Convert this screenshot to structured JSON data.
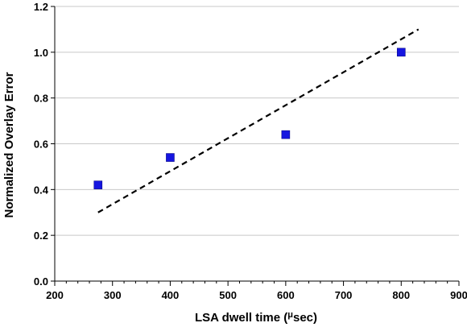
{
  "chart_data": {
    "type": "scatter",
    "title": "",
    "xlabel": "LSA dwell time (",
    "xlabel_mu": "μ",
    "xlabel_suffix": "sec)",
    "ylabel": "Normalized Overlay Error",
    "xlim": [
      200,
      900
    ],
    "ylim": [
      0.0,
      1.2
    ],
    "x_ticks": [
      "200",
      "300",
      "400",
      "500",
      "600",
      "700",
      "800",
      "900"
    ],
    "y_ticks": [
      "0.0",
      "0.2",
      "0.4",
      "0.6",
      "0.8",
      "1.0",
      "1.2"
    ],
    "grid": {
      "horizontal": true,
      "vertical": false
    },
    "legend": "none",
    "series": [
      {
        "marker": "square",
        "color": "#1515e0",
        "x": [
          275,
          400,
          600,
          800
        ],
        "y": [
          0.42,
          0.54,
          0.64,
          1.0
        ]
      }
    ],
    "trendline": {
      "style": "dashed",
      "color": "#000000",
      "x": [
        275,
        830
      ],
      "y": [
        0.3,
        1.1
      ]
    }
  }
}
